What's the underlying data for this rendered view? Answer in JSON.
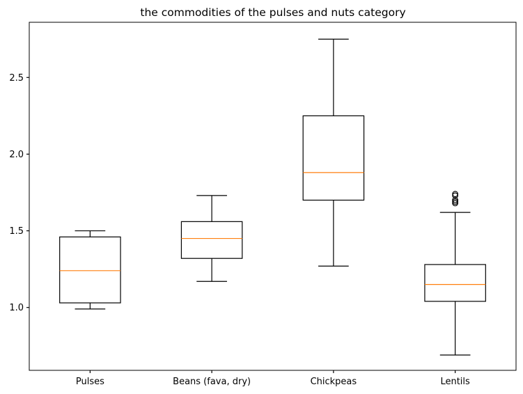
{
  "chart_data": {
    "type": "box",
    "title": "the  commodities of the pulses and nuts category",
    "xlabel": "",
    "ylabel": "",
    "categories": [
      "Pulses",
      "Beans (fava, dry)",
      "Chickpeas",
      "Lentils"
    ],
    "ylim": [
      0.59,
      2.86
    ],
    "yticks": [
      1.0,
      1.5,
      2.0,
      2.5
    ],
    "ytick_labels": [
      "1.0",
      "1.5",
      "2.0",
      "2.5"
    ],
    "boxes": [
      {
        "category": "Pulses",
        "whisker_low": 0.99,
        "q1": 1.03,
        "median": 1.24,
        "q3": 1.46,
        "whisker_high": 1.5,
        "outliers": []
      },
      {
        "category": "Beans (fava, dry)",
        "whisker_low": 1.17,
        "q1": 1.32,
        "median": 1.45,
        "q3": 1.56,
        "whisker_high": 1.73,
        "outliers": []
      },
      {
        "category": "Chickpeas",
        "whisker_low": 1.27,
        "q1": 1.7,
        "median": 1.88,
        "q3": 2.25,
        "whisker_high": 2.75,
        "outliers": []
      },
      {
        "category": "Lentils",
        "whisker_low": 0.69,
        "q1": 1.04,
        "median": 1.15,
        "q3": 1.28,
        "whisker_high": 1.62,
        "outliers": [
          1.68,
          1.69,
          1.7,
          1.73,
          1.74
        ]
      }
    ],
    "colors": {
      "box": "#000000",
      "median": "#ff7f0e",
      "outlier": "#000000"
    },
    "grid": false,
    "legend": "none"
  }
}
